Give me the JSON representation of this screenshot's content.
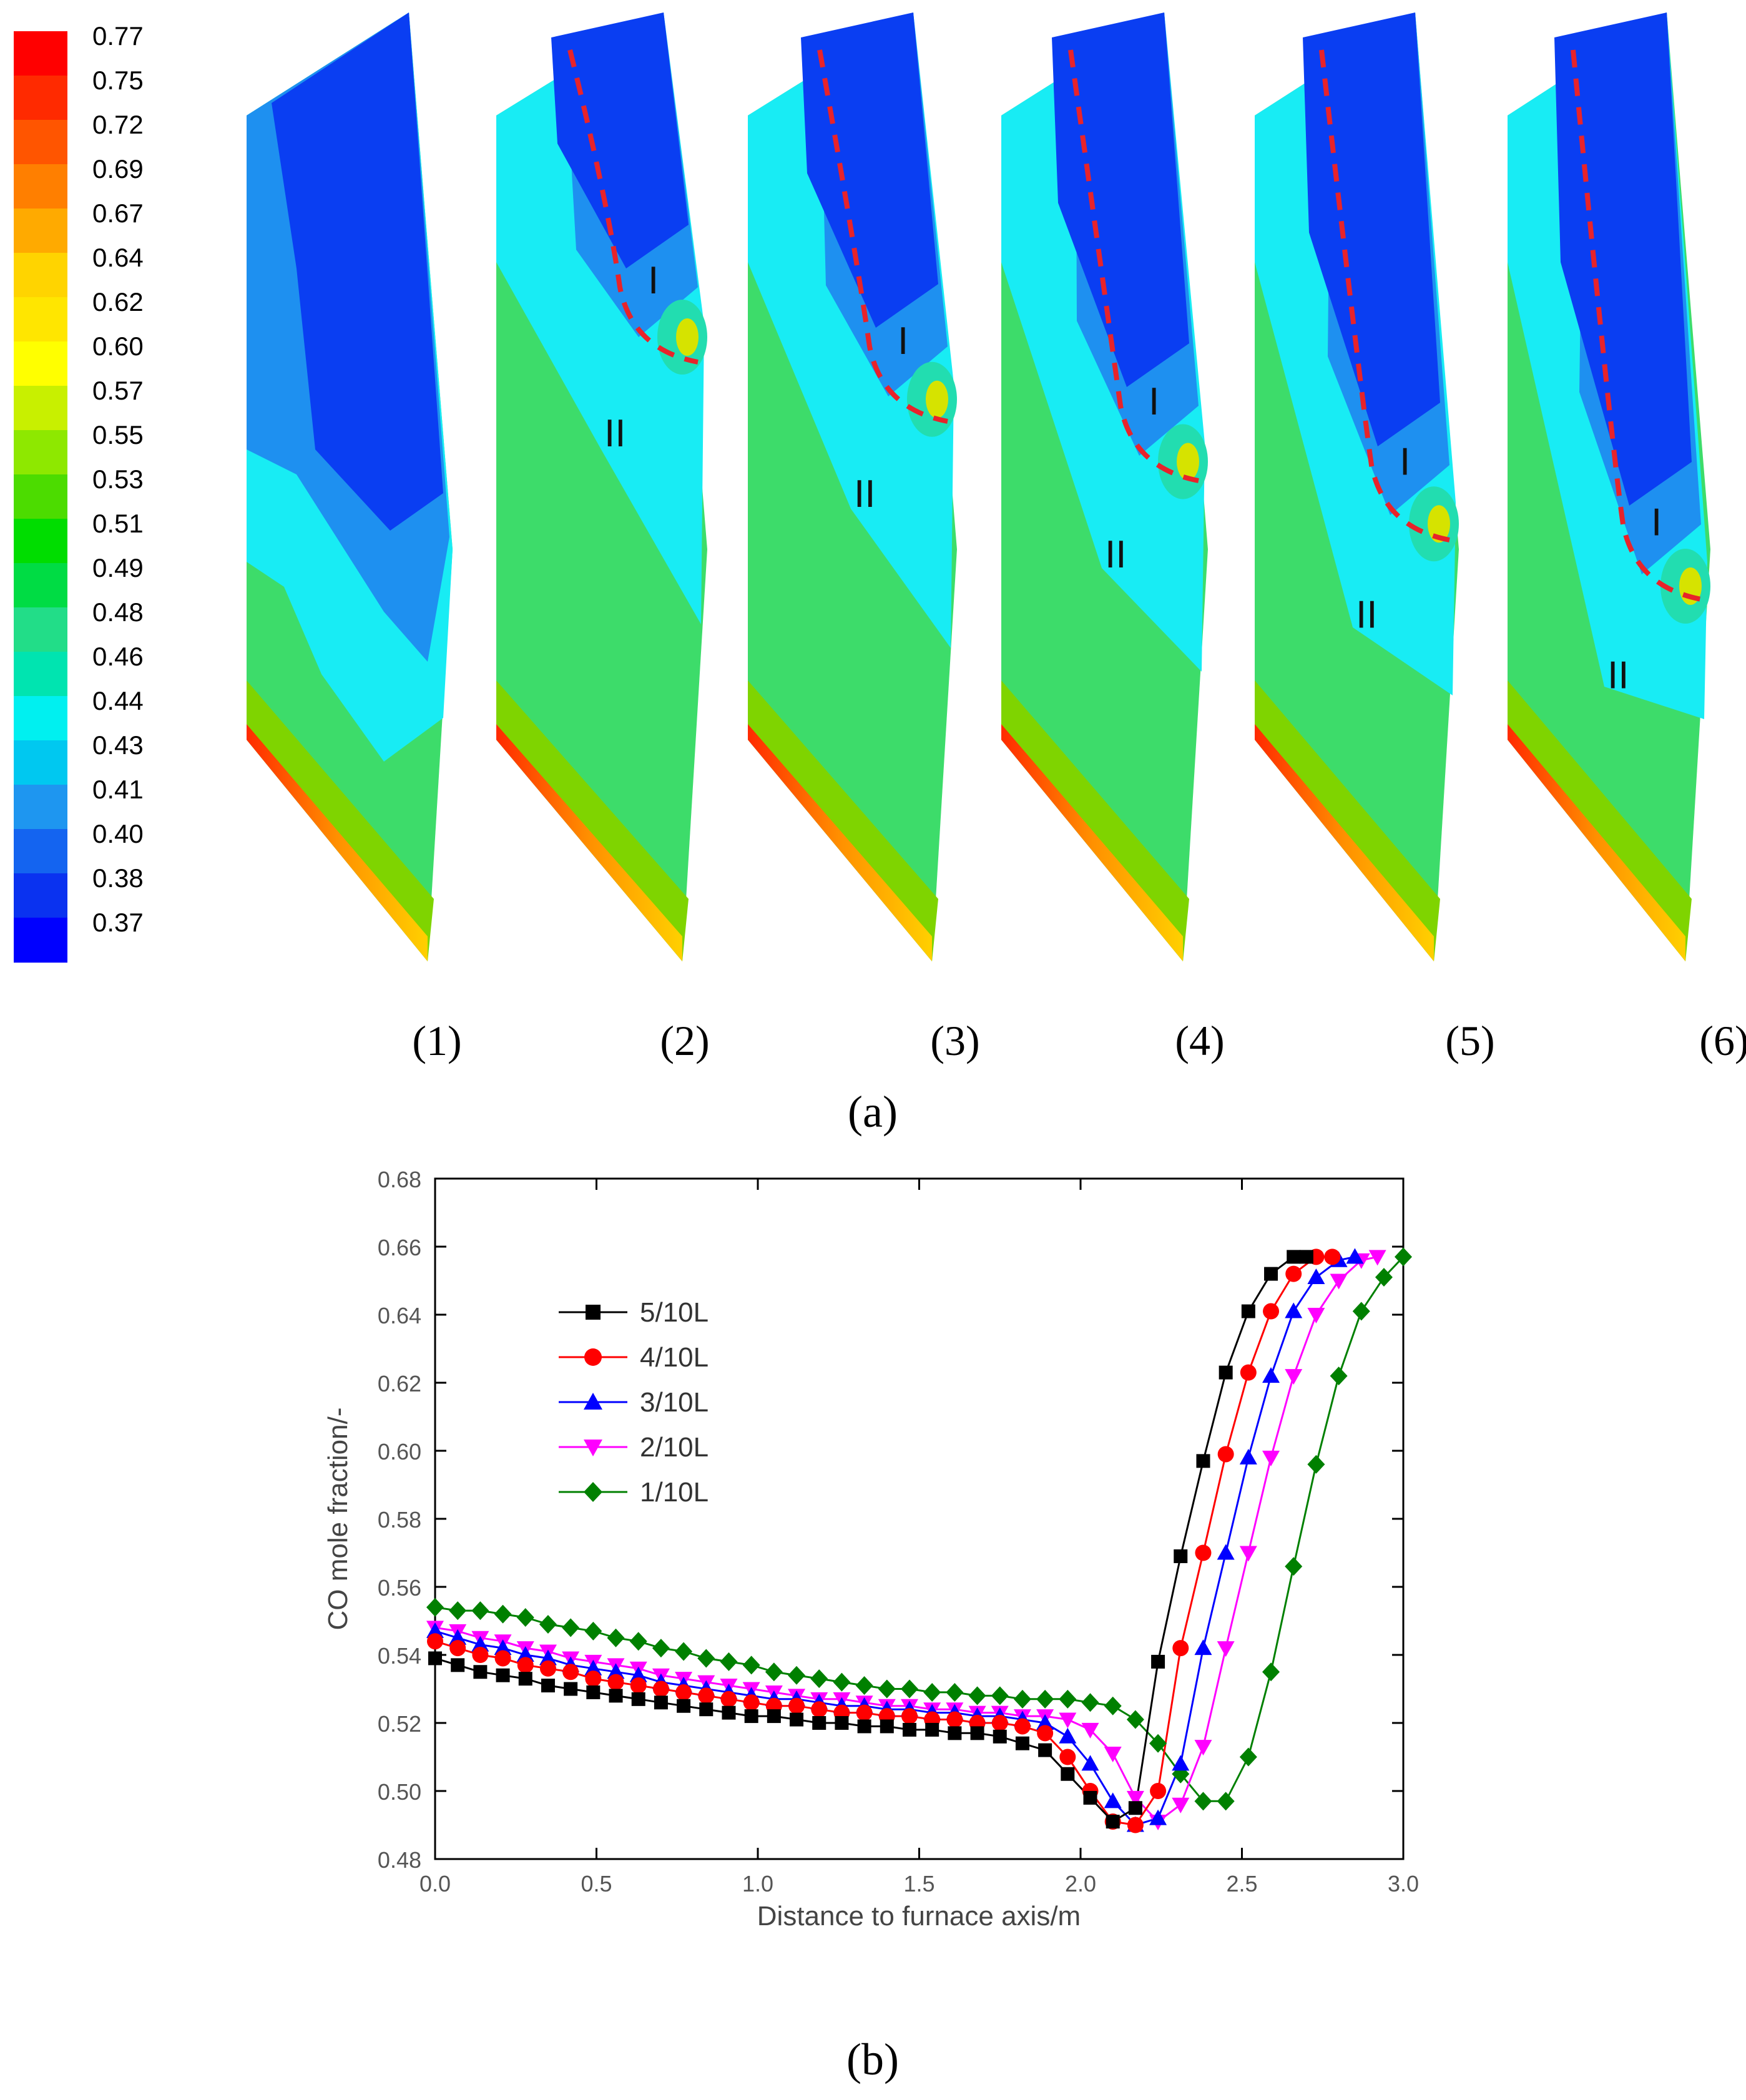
{
  "panel_a": {
    "colorbar": {
      "values": [
        "0.77",
        "0.75",
        "0.72",
        "0.69",
        "0.67",
        "0.64",
        "0.62",
        "0.60",
        "0.57",
        "0.55",
        "0.53",
        "0.51",
        "0.49",
        "0.48",
        "0.46",
        "0.44",
        "0.43",
        "0.41",
        "0.40",
        "0.38",
        "0.37"
      ],
      "colors": [
        "#ff0000",
        "#ff2a00",
        "#ff5500",
        "#ff7f00",
        "#ffaa00",
        "#ffd400",
        "#ffe600",
        "#ffff00",
        "#c8f000",
        "#8ee800",
        "#4cdc00",
        "#00dd00",
        "#00dc44",
        "#22dd88",
        "#00e4b0",
        "#00f0f0",
        "#00c8f0",
        "#1e96f0",
        "#1464f0",
        "#0a32f0",
        "#0000ff"
      ]
    },
    "contours": [
      {
        "label": "(1)",
        "zones": []
      },
      {
        "label": "(2)",
        "zones": [
          "I",
          "II"
        ]
      },
      {
        "label": "(3)",
        "zones": [
          "I",
          "II"
        ]
      },
      {
        "label": "(4)",
        "zones": [
          "I",
          "II"
        ]
      },
      {
        "label": "(5)",
        "zones": [
          "I",
          "II"
        ]
      },
      {
        "label": "(6)",
        "zones": [
          "I",
          "II"
        ]
      }
    ],
    "zone_colors": {
      "deep": "#0a3ef2",
      "mid": "#1e90f0",
      "cyan": "#18ecf4",
      "teal": "#22ddb0",
      "green": "#3ddc6a",
      "lime": "#7fd400",
      "yellow": "#d6e300",
      "orange": "#ff8c00",
      "red": "#ff2a00",
      "dash": "#e8232a"
    },
    "caption": "(a)"
  },
  "chart_data": {
    "type": "line",
    "title": "",
    "xlabel": "Distance to furnace axis/m",
    "ylabel": "CO mole fraction/-",
    "xlim": [
      0.0,
      3.0
    ],
    "ylim": [
      0.48,
      0.68
    ],
    "xticks": [
      "0.0",
      "0.5",
      "1.0",
      "1.5",
      "2.0",
      "2.5",
      "3.0"
    ],
    "yticks": [
      "0.48",
      "0.50",
      "0.52",
      "0.54",
      "0.56",
      "0.58",
      "0.60",
      "0.62",
      "0.64",
      "0.66",
      "0.68"
    ],
    "series": [
      {
        "name": "5/10L",
        "color": "#000000",
        "marker": "square",
        "x": [
          0,
          0.07,
          0.14,
          0.21,
          0.28,
          0.35,
          0.42,
          0.49,
          0.56,
          0.63,
          0.7,
          0.77,
          0.84,
          0.91,
          0.98,
          1.05,
          1.12,
          1.19,
          1.26,
          1.33,
          1.4,
          1.47,
          1.54,
          1.61,
          1.68,
          1.75,
          1.82,
          1.89,
          1.96,
          2.03,
          2.1,
          2.17,
          2.24,
          2.31,
          2.38,
          2.45,
          2.52,
          2.59,
          2.66,
          2.7
        ],
        "y": [
          0.539,
          0.537,
          0.535,
          0.534,
          0.533,
          0.531,
          0.53,
          0.529,
          0.528,
          0.527,
          0.526,
          0.525,
          0.524,
          0.523,
          0.522,
          0.522,
          0.521,
          0.52,
          0.52,
          0.519,
          0.519,
          0.518,
          0.518,
          0.517,
          0.517,
          0.516,
          0.514,
          0.512,
          0.505,
          0.498,
          0.491,
          0.495,
          0.538,
          0.569,
          0.597,
          0.623,
          0.641,
          0.652,
          0.657,
          0.657
        ]
      },
      {
        "name": "4/10L",
        "color": "#ff0000",
        "marker": "circle",
        "x": [
          0,
          0.07,
          0.14,
          0.21,
          0.28,
          0.35,
          0.42,
          0.49,
          0.56,
          0.63,
          0.7,
          0.77,
          0.84,
          0.91,
          0.98,
          1.05,
          1.12,
          1.19,
          1.26,
          1.33,
          1.4,
          1.47,
          1.54,
          1.61,
          1.68,
          1.75,
          1.82,
          1.89,
          1.96,
          2.03,
          2.1,
          2.17,
          2.24,
          2.31,
          2.38,
          2.45,
          2.52,
          2.59,
          2.66,
          2.73,
          2.78
        ],
        "y": [
          0.544,
          0.542,
          0.54,
          0.539,
          0.537,
          0.536,
          0.535,
          0.533,
          0.532,
          0.531,
          0.53,
          0.529,
          0.528,
          0.527,
          0.526,
          0.525,
          0.525,
          0.524,
          0.523,
          0.523,
          0.522,
          0.522,
          0.521,
          0.521,
          0.52,
          0.52,
          0.519,
          0.517,
          0.51,
          0.5,
          0.491,
          0.49,
          0.5,
          0.542,
          0.57,
          0.599,
          0.623,
          0.641,
          0.652,
          0.657,
          0.657
        ]
      },
      {
        "name": "3/10L",
        "color": "#0000ff",
        "marker": "triangle-up",
        "x": [
          0,
          0.07,
          0.14,
          0.21,
          0.28,
          0.35,
          0.42,
          0.49,
          0.56,
          0.63,
          0.7,
          0.77,
          0.84,
          0.91,
          0.98,
          1.05,
          1.12,
          1.19,
          1.26,
          1.33,
          1.4,
          1.47,
          1.54,
          1.61,
          1.68,
          1.75,
          1.82,
          1.89,
          1.96,
          2.03,
          2.1,
          2.17,
          2.24,
          2.31,
          2.38,
          2.45,
          2.52,
          2.59,
          2.66,
          2.73,
          2.8,
          2.85
        ],
        "y": [
          0.547,
          0.545,
          0.543,
          0.542,
          0.54,
          0.539,
          0.537,
          0.536,
          0.535,
          0.534,
          0.532,
          0.531,
          0.53,
          0.529,
          0.528,
          0.527,
          0.527,
          0.526,
          0.525,
          0.525,
          0.524,
          0.524,
          0.523,
          0.523,
          0.522,
          0.522,
          0.521,
          0.52,
          0.516,
          0.508,
          0.497,
          0.49,
          0.492,
          0.508,
          0.542,
          0.57,
          0.598,
          0.622,
          0.641,
          0.651,
          0.656,
          0.657
        ]
      },
      {
        "name": "2/10L",
        "color": "#ff00ff",
        "marker": "triangle-down",
        "x": [
          0,
          0.07,
          0.14,
          0.21,
          0.28,
          0.35,
          0.42,
          0.49,
          0.56,
          0.63,
          0.7,
          0.77,
          0.84,
          0.91,
          0.98,
          1.05,
          1.12,
          1.19,
          1.26,
          1.33,
          1.4,
          1.47,
          1.54,
          1.61,
          1.68,
          1.75,
          1.82,
          1.89,
          1.96,
          2.03,
          2.1,
          2.17,
          2.24,
          2.31,
          2.38,
          2.45,
          2.52,
          2.59,
          2.66,
          2.73,
          2.8,
          2.87,
          2.92
        ],
        "y": [
          0.548,
          0.547,
          0.545,
          0.544,
          0.542,
          0.541,
          0.539,
          0.538,
          0.537,
          0.536,
          0.534,
          0.533,
          0.532,
          0.531,
          0.53,
          0.529,
          0.528,
          0.527,
          0.527,
          0.526,
          0.525,
          0.525,
          0.524,
          0.524,
          0.523,
          0.523,
          0.522,
          0.522,
          0.521,
          0.518,
          0.511,
          0.498,
          0.491,
          0.496,
          0.513,
          0.542,
          0.57,
          0.598,
          0.622,
          0.64,
          0.65,
          0.656,
          0.657
        ]
      },
      {
        "name": "1/10L",
        "color": "#008000",
        "marker": "diamond",
        "x": [
          0,
          0.07,
          0.14,
          0.21,
          0.28,
          0.35,
          0.42,
          0.49,
          0.56,
          0.63,
          0.7,
          0.77,
          0.84,
          0.91,
          0.98,
          1.05,
          1.12,
          1.19,
          1.26,
          1.33,
          1.4,
          1.47,
          1.54,
          1.61,
          1.68,
          1.75,
          1.82,
          1.89,
          1.96,
          2.03,
          2.1,
          2.17,
          2.24,
          2.31,
          2.38,
          2.45,
          2.52,
          2.59,
          2.66,
          2.73,
          2.8,
          2.87,
          2.94,
          3.0
        ],
        "y": [
          0.554,
          0.553,
          0.553,
          0.552,
          0.551,
          0.549,
          0.548,
          0.547,
          0.545,
          0.544,
          0.542,
          0.541,
          0.539,
          0.538,
          0.537,
          0.535,
          0.534,
          0.533,
          0.532,
          0.531,
          0.53,
          0.53,
          0.529,
          0.529,
          0.528,
          0.528,
          0.527,
          0.527,
          0.527,
          0.526,
          0.525,
          0.521,
          0.514,
          0.505,
          0.497,
          0.497,
          0.51,
          0.535,
          0.566,
          0.596,
          0.622,
          0.641,
          0.651,
          0.657
        ]
      }
    ]
  },
  "caption_b": "(b)"
}
